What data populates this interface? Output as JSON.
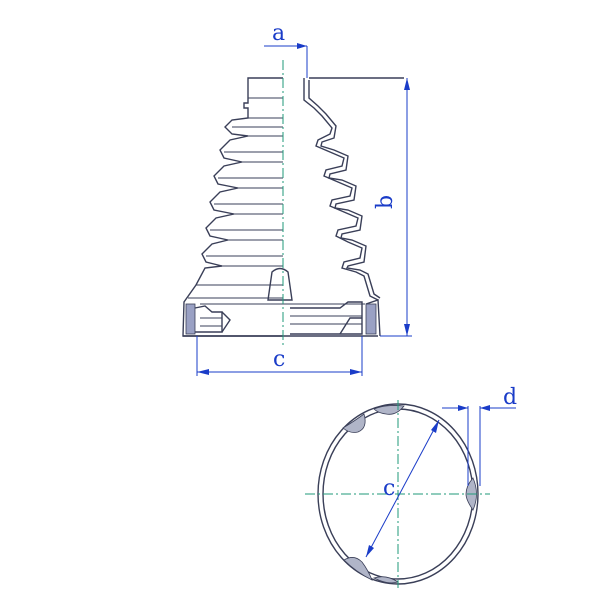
{
  "labels": {
    "a": "a",
    "b": "b",
    "c_side": "c",
    "c_ring": "c",
    "d": "d"
  },
  "colors": {
    "dimension": "#1a3cc8",
    "centerline": "#1f9a7a",
    "outline": "#3a3f58",
    "section_fill": "#9aa1c4"
  }
}
